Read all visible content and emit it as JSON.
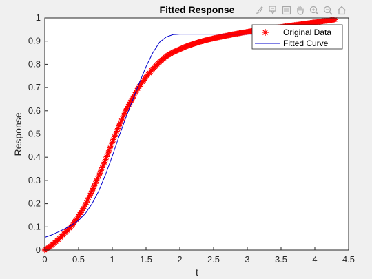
{
  "chart_data": {
    "type": "line",
    "title": "Fitted Response",
    "xlabel": "t",
    "ylabel": "Response",
    "xlim": [
      0,
      4.5
    ],
    "ylim": [
      0,
      1
    ],
    "xticks": [
      "0",
      "0.5",
      "1",
      "1.5",
      "2",
      "2.5",
      "3",
      "3.5",
      "4",
      "4.5"
    ],
    "yticks": [
      "0",
      "0.1",
      "0.2",
      "0.3",
      "0.4",
      "0.5",
      "0.6",
      "0.7",
      "0.8",
      "0.9",
      "1"
    ],
    "grid": false,
    "legend_position": "top-right",
    "series": [
      {
        "name": "Original Data",
        "style": "markers",
        "marker": "asterisk",
        "color": "#ff0000",
        "x": [
          0,
          0.1,
          0.2,
          0.3,
          0.4,
          0.5,
          0.6,
          0.7,
          0.8,
          0.9,
          1.0,
          1.1,
          1.2,
          1.3,
          1.4,
          1.5,
          1.6,
          1.7,
          1.8,
          1.9,
          2.0,
          2.1,
          2.2,
          2.3,
          2.4,
          2.5,
          2.6,
          2.7,
          2.8,
          2.9,
          3.0,
          3.1,
          3.2,
          3.3,
          3.4,
          3.5,
          3.6,
          3.7,
          3.8,
          3.9,
          4.0,
          4.1,
          4.2,
          4.3
        ],
        "y": [
          0.0,
          0.02,
          0.045,
          0.075,
          0.105,
          0.145,
          0.195,
          0.255,
          0.32,
          0.39,
          0.465,
          0.535,
          0.6,
          0.655,
          0.705,
          0.745,
          0.78,
          0.81,
          0.835,
          0.852,
          0.865,
          0.878,
          0.888,
          0.897,
          0.905,
          0.912,
          0.918,
          0.924,
          0.93,
          0.935,
          0.94,
          0.945,
          0.949,
          0.953,
          0.957,
          0.961,
          0.965,
          0.969,
          0.973,
          0.977,
          0.981,
          0.985,
          0.989,
          0.993
        ]
      },
      {
        "name": "Fitted Curve",
        "style": "line",
        "color": "#0000cd",
        "x": [
          0,
          0.1,
          0.2,
          0.3,
          0.4,
          0.5,
          0.6,
          0.7,
          0.8,
          0.9,
          1.0,
          1.1,
          1.2,
          1.3,
          1.4,
          1.5,
          1.6,
          1.7,
          1.8,
          1.9,
          2.0,
          2.1,
          2.2,
          2.3,
          2.4,
          2.5,
          2.6,
          2.7,
          2.8,
          2.9,
          3.0,
          3.1,
          3.2,
          3.3,
          3.4,
          3.5,
          3.6,
          3.7,
          3.8,
          3.9,
          4.0,
          4.1,
          4.2,
          4.3
        ],
        "y": [
          0.055,
          0.065,
          0.078,
          0.092,
          0.108,
          0.128,
          0.157,
          0.2,
          0.255,
          0.325,
          0.405,
          0.49,
          0.57,
          0.645,
          0.72,
          0.79,
          0.85,
          0.895,
          0.918,
          0.928,
          0.93,
          0.93,
          0.93,
          0.93,
          0.93,
          0.93,
          0.93,
          0.93,
          0.93,
          0.93,
          0.93,
          0.93,
          0.93,
          0.93,
          0.93,
          0.93,
          0.93,
          0.93,
          0.93,
          0.93,
          0.93,
          0.93,
          0.93,
          0.93
        ]
      }
    ]
  },
  "toolbar": {
    "icons": [
      "brush-icon",
      "data-tips-icon",
      "insert-legend-icon",
      "pan-hand-icon",
      "zoom-in-icon",
      "zoom-out-icon",
      "home-icon"
    ]
  }
}
